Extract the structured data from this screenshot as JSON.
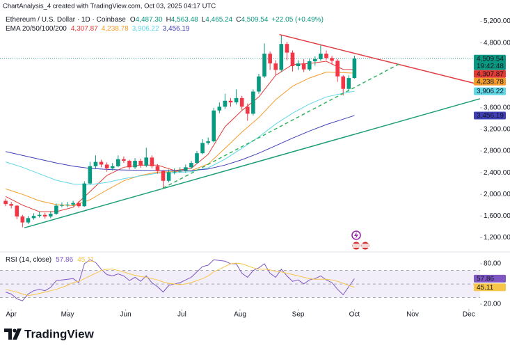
{
  "header": {
    "attribution": "ChartAnalysis_4 created with TradingView.com, Oct 03, 2025 04:17 UTC",
    "symbol": "Ethereum / U.S. Dollar · 1D · Coinbase",
    "ohlc": [
      {
        "letter": "O",
        "label": "4,487.30"
      },
      {
        "letter": "H",
        "label": "4,563.48"
      },
      {
        "letter": "L",
        "label": "4,465.24"
      },
      {
        "letter": "C",
        "label": "4,509.54"
      }
    ],
    "change": "+22.05 (+0.49%)",
    "value_color": "#089981"
  },
  "footer": {
    "brand": "TradingView"
  },
  "chart_data": [
    {
      "type": "candlestick",
      "up_color": "#089981",
      "down_color": "#f23645",
      "xlim": [
        -6,
        250
      ],
      "xticks": [
        {
          "value": 0,
          "label": "Apr"
        },
        {
          "value": 30,
          "label": "May"
        },
        {
          "value": 61,
          "label": "Jun"
        },
        {
          "value": 91,
          "label": "Jul"
        },
        {
          "value": 122,
          "label": "Aug"
        },
        {
          "value": 153,
          "label": "Sep"
        },
        {
          "value": 183,
          "label": "Oct"
        },
        {
          "value": 214,
          "label": "Nov"
        },
        {
          "value": 244,
          "label": "Dec"
        }
      ],
      "ylim": [
        960,
        5310
      ],
      "yticks": [
        {
          "value": 5200,
          "label": "5,200.00"
        },
        {
          "value": 4800,
          "label": "4,800.00"
        },
        {
          "value": 3600,
          "label": "3,600.00"
        },
        {
          "value": 3200,
          "label": "3,200.00"
        },
        {
          "value": 2800,
          "label": "2,800.00"
        },
        {
          "value": 2400,
          "label": "2,400.00"
        },
        {
          "value": 2000,
          "label": "2,000.00"
        },
        {
          "value": 1600,
          "label": "1,600.00"
        },
        {
          "value": 1200,
          "label": "1,200.00"
        }
      ],
      "grid": false,
      "x": [
        -3,
        0,
        3,
        6,
        9,
        12,
        15,
        18,
        21,
        24,
        27,
        30,
        33,
        36,
        39,
        42,
        45,
        48,
        51,
        54,
        57,
        60,
        63,
        66,
        69,
        72,
        75,
        78,
        81,
        84,
        87,
        90,
        93,
        96,
        99,
        102,
        105,
        108,
        111,
        114,
        117,
        120,
        123,
        126,
        129,
        132,
        135,
        138,
        141,
        144,
        147,
        150,
        153,
        156,
        159,
        162,
        165,
        168,
        171,
        174,
        177,
        180,
        183
      ],
      "open": [
        1880,
        1820,
        1790,
        1590,
        1480,
        1560,
        1600,
        1620,
        1590,
        1640,
        1790,
        1800,
        1810,
        1840,
        1780,
        2200,
        2520,
        2600,
        2550,
        2480,
        2520,
        2650,
        2620,
        2500,
        2620,
        2530,
        2680,
        2520,
        2430,
        2250,
        2410,
        2420,
        2440,
        2500,
        2580,
        2760,
        2950,
        2980,
        3550,
        3620,
        3730,
        3700,
        3780,
        3620,
        3490,
        3900,
        4180,
        4600,
        4420,
        4300,
        4780,
        4620,
        4370,
        4420,
        4310,
        4460,
        4500,
        4600,
        4520,
        4470,
        4180,
        3950,
        4150
      ],
      "high": [
        1920,
        1860,
        1800,
        1620,
        1600,
        1650,
        1680,
        1660,
        1690,
        1830,
        1850,
        1860,
        1880,
        1870,
        2240,
        2600,
        2720,
        2640,
        2590,
        2580,
        2720,
        2700,
        2640,
        2670,
        2660,
        2860,
        2720,
        2560,
        2450,
        2460,
        2480,
        2500,
        2550,
        2620,
        2800,
        3020,
        3050,
        3600,
        3700,
        3860,
        3780,
        3940,
        3820,
        3680,
        3940,
        4230,
        4790,
        4640,
        4480,
        4950,
        4820,
        4660,
        4480,
        4500,
        4500,
        4550,
        4770,
        4660,
        4560,
        4500,
        4200,
        4200,
        4563.48
      ],
      "low": [
        1780,
        1740,
        1540,
        1390,
        1450,
        1530,
        1570,
        1550,
        1560,
        1620,
        1760,
        1760,
        1780,
        1750,
        1770,
        2180,
        2480,
        2500,
        2420,
        2440,
        2500,
        2580,
        2460,
        2470,
        2490,
        2500,
        2480,
        2380,
        2110,
        2220,
        2370,
        2400,
        2400,
        2470,
        2560,
        2740,
        2920,
        2960,
        3500,
        3580,
        3620,
        3660,
        3560,
        3360,
        3460,
        3860,
        4150,
        4300,
        4200,
        4260,
        4480,
        4270,
        4300,
        4260,
        4280,
        4380,
        4470,
        4480,
        4400,
        4080,
        3830,
        3900,
        4140
      ],
      "close": [
        1820,
        1790,
        1590,
        1480,
        1560,
        1600,
        1620,
        1590,
        1640,
        1790,
        1800,
        1810,
        1840,
        1780,
        2200,
        2520,
        2600,
        2550,
        2480,
        2520,
        2650,
        2620,
        2500,
        2620,
        2530,
        2680,
        2520,
        2430,
        2250,
        2410,
        2420,
        2440,
        2500,
        2580,
        2760,
        2950,
        2980,
        3550,
        3620,
        3730,
        3700,
        3780,
        3620,
        3490,
        3900,
        4180,
        4600,
        4420,
        4300,
        4780,
        4620,
        4370,
        4420,
        4310,
        4460,
        4500,
        4600,
        4520,
        4470,
        4180,
        3950,
        4150,
        4509.54
      ],
      "last_price": {
        "value": 4509.54,
        "label": "4,509.54",
        "countdown": "19:42:48",
        "color": "#089981"
      },
      "ema": {
        "label": "EMA 20/50/100/200",
        "x": [
          -3,
          6,
          15,
          24,
          33,
          42,
          51,
          60,
          69,
          78,
          87,
          96,
          105,
          114,
          123,
          132,
          141,
          150,
          159,
          168,
          177,
          183
        ],
        "series": [
          {
            "color": "#e53935",
            "last_label": "4,307.87",
            "values": [
              1960,
              1800,
              1680,
              1680,
              1760,
              2050,
              2350,
              2500,
              2540,
              2540,
              2440,
              2480,
              2740,
              3250,
              3550,
              3800,
              4200,
              4400,
              4420,
              4460,
              4310,
              4307.87
            ]
          },
          {
            "color": "#f59b2a",
            "last_label": "4,238.78",
            "values": [
              2100,
              2000,
              1880,
              1810,
              1790,
              1900,
              2080,
              2250,
              2350,
              2410,
              2420,
              2440,
              2560,
              2850,
              3150,
              3420,
              3750,
              4000,
              4150,
              4260,
              4250,
              4238.78
            ]
          },
          {
            "color": "#5fd8e8",
            "last_label": "3,906.22",
            "values": [
              2600,
              2500,
              2380,
              2260,
              2190,
              2180,
              2220,
              2290,
              2340,
              2390,
              2400,
              2420,
              2490,
              2650,
              2850,
              3060,
              3300,
              3500,
              3670,
              3800,
              3870,
              3906.22
            ]
          },
          {
            "color": "#3f3fb8",
            "last_label": "3,456.19",
            "values": [
              2790,
              2720,
              2650,
              2580,
              2520,
              2480,
              2460,
              2450,
              2445,
              2440,
              2435,
              2440,
              2470,
              2540,
              2640,
              2760,
              2900,
              3040,
              3170,
              3290,
              3390,
              3456.19
            ]
          }
        ]
      },
      "trendlines": [
        {
          "color": "#e0383e",
          "x": [
            143,
            250
          ],
          "y": [
            4955,
            4026
          ]
        },
        {
          "color": "#1b9e77",
          "x": [
            7,
            250
          ],
          "y": [
            1381,
            3768
          ]
        },
        {
          "color": "#2fb35a",
          "dashed": true,
          "x": [
            81,
            207
          ],
          "y": [
            2116,
            4413
          ]
        }
      ]
    },
    {
      "type": "line",
      "title": "RSI (14, close)",
      "ylim": [
        11.75,
        94.5
      ],
      "yticks": [
        {
          "value": 80,
          "label": "80.00"
        },
        {
          "value": 20,
          "label": "20.00"
        }
      ],
      "band": [
        30,
        70
      ],
      "band_color": "#7e57c2",
      "levels": [
        70,
        50,
        30
      ],
      "series": [
        {
          "color": "#7e57c2",
          "values": [
            38,
            35,
            28,
            25,
            35,
            40,
            42,
            40,
            45,
            55,
            56,
            57,
            58,
            52,
            80,
            86,
            82,
            72,
            64,
            62,
            65,
            62,
            55,
            60,
            54,
            62,
            52,
            46,
            38,
            48,
            50,
            52,
            56,
            60,
            68,
            76,
            78,
            86,
            85,
            84,
            80,
            80,
            66,
            60,
            70,
            74,
            80,
            66,
            60,
            72,
            62,
            54,
            56,
            50,
            56,
            58,
            62,
            56,
            52,
            42,
            34,
            46,
            57.86
          ]
        },
        {
          "color": "#f7c548",
          "values": [
            42,
            40,
            38,
            35,
            33,
            34,
            36,
            38,
            40,
            42,
            45,
            48,
            52,
            54,
            58,
            62,
            66,
            70,
            72,
            72,
            70,
            68,
            65,
            63,
            61,
            60,
            58,
            56,
            53,
            51,
            50,
            49,
            50,
            52,
            55,
            58,
            62,
            68,
            72,
            76,
            80,
            81,
            80,
            77,
            74,
            72,
            72,
            71,
            69,
            68,
            66,
            64,
            62,
            60,
            58,
            57,
            57,
            57,
            56,
            54,
            51,
            48,
            45.11
          ]
        }
      ]
    }
  ]
}
